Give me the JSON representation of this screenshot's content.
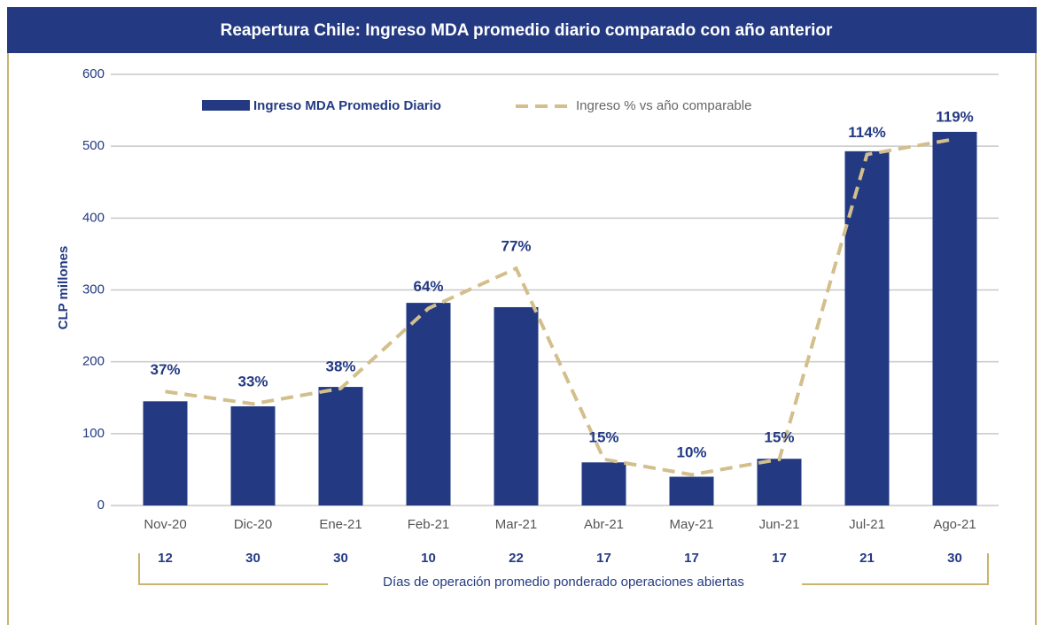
{
  "chart_data": {
    "type": "bar",
    "title": "Reapertura Chile: Ingreso MDA promedio diario comparado con año anterior",
    "y_label": "CLP millones",
    "categories": [
      "Nov-20",
      "Dic-20",
      "Ene-21",
      "Feb-21",
      "Mar-21",
      "Abr-21",
      "May-21",
      "Jun-21",
      "Jul-21",
      "Ago-21"
    ],
    "series": [
      {
        "name": "Ingreso MDA Promedio Diario",
        "type": "bar",
        "color": "#233a83",
        "values": [
          145,
          138,
          165,
          282,
          276,
          60,
          40,
          65,
          493,
          520
        ]
      },
      {
        "name": "Ingreso % vs año comparable",
        "type": "line",
        "axis": "y2",
        "color": "#d3bf8c",
        "values": [
          37,
          33,
          38,
          64,
          77,
          15,
          10,
          15,
          114,
          119
        ],
        "value_labels": [
          "37%",
          "33%",
          "38%",
          "64%",
          "77%",
          "15%",
          "10%",
          "15%",
          "114%",
          "119%"
        ]
      }
    ],
    "ylim": [
      0,
      600
    ],
    "yticks": [
      0,
      100,
      200,
      300,
      400,
      500,
      600
    ],
    "y2lim": [
      0,
      140
    ],
    "grid": true,
    "legend": "top",
    "days": {
      "label": "Días de operación promedio ponderado operaciones abiertas",
      "values": [
        12,
        30,
        30,
        10,
        22,
        17,
        17,
        17,
        21,
        30
      ]
    }
  }
}
